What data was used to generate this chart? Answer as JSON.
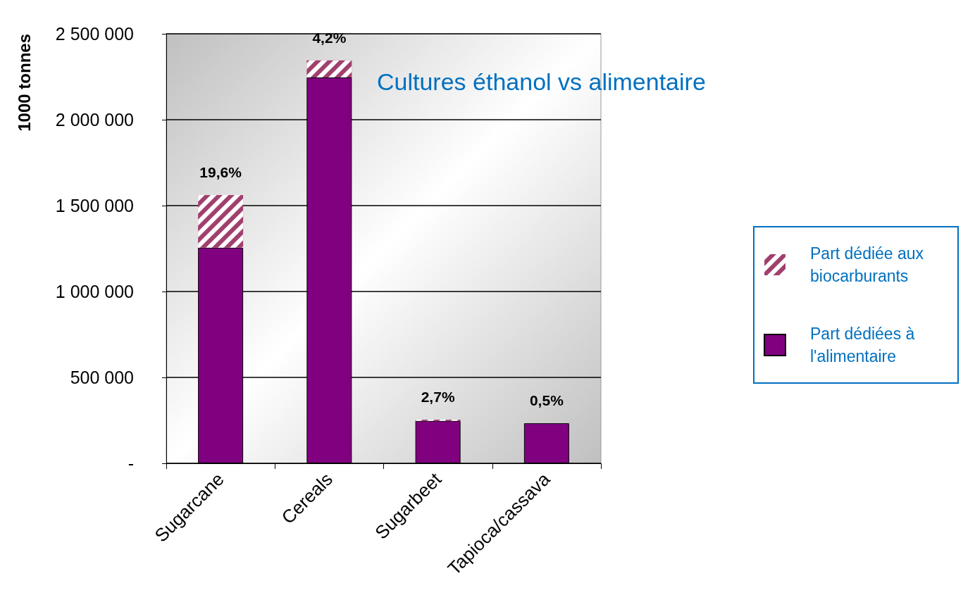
{
  "chart_data": {
    "type": "bar",
    "title": "Cultures éthanol vs alimentaire",
    "ylabel": "1000 tonnes",
    "categories": [
      "Sugarcane",
      "Cereals",
      "Sugarbeet",
      "Tapioca/cassava"
    ],
    "stacked": true,
    "series": [
      {
        "name": "Part dédiées à l'alimentaire",
        "color": "#800080",
        "values": [
          1255000,
          2246000,
          247000,
          233000
        ]
      },
      {
        "name": "Part dédiée aux biocarburants",
        "color": "#a0406e",
        "values": [
          306000,
          99000,
          7000,
          null
        ]
      }
    ],
    "annotations": [
      {
        "text": "19,6%",
        "x": "Sugarcane",
        "y": 1561000
      },
      {
        "text": "4,2%",
        "x": "Cereals",
        "y": 2345000
      },
      {
        "text": "2,7%",
        "x": "Sugarbeet",
        "y": 254000
      },
      {
        "text": "0,5%",
        "x": "Tapioca/cassava",
        "y": 234000
      }
    ],
    "ylim": [
      0,
      2500000
    ],
    "yticks": [
      {
        "value": 0,
        "label": "-"
      },
      {
        "value": 500000,
        "label": "500 000"
      },
      {
        "value": 1000000,
        "label": "1 000 000"
      },
      {
        "value": 1500000,
        "label": "1 500 000"
      },
      {
        "value": 2000000,
        "label": "2 000 000"
      },
      {
        "value": 2500000,
        "label": "2 500 000"
      }
    ],
    "grid": "y",
    "legend": "right"
  }
}
